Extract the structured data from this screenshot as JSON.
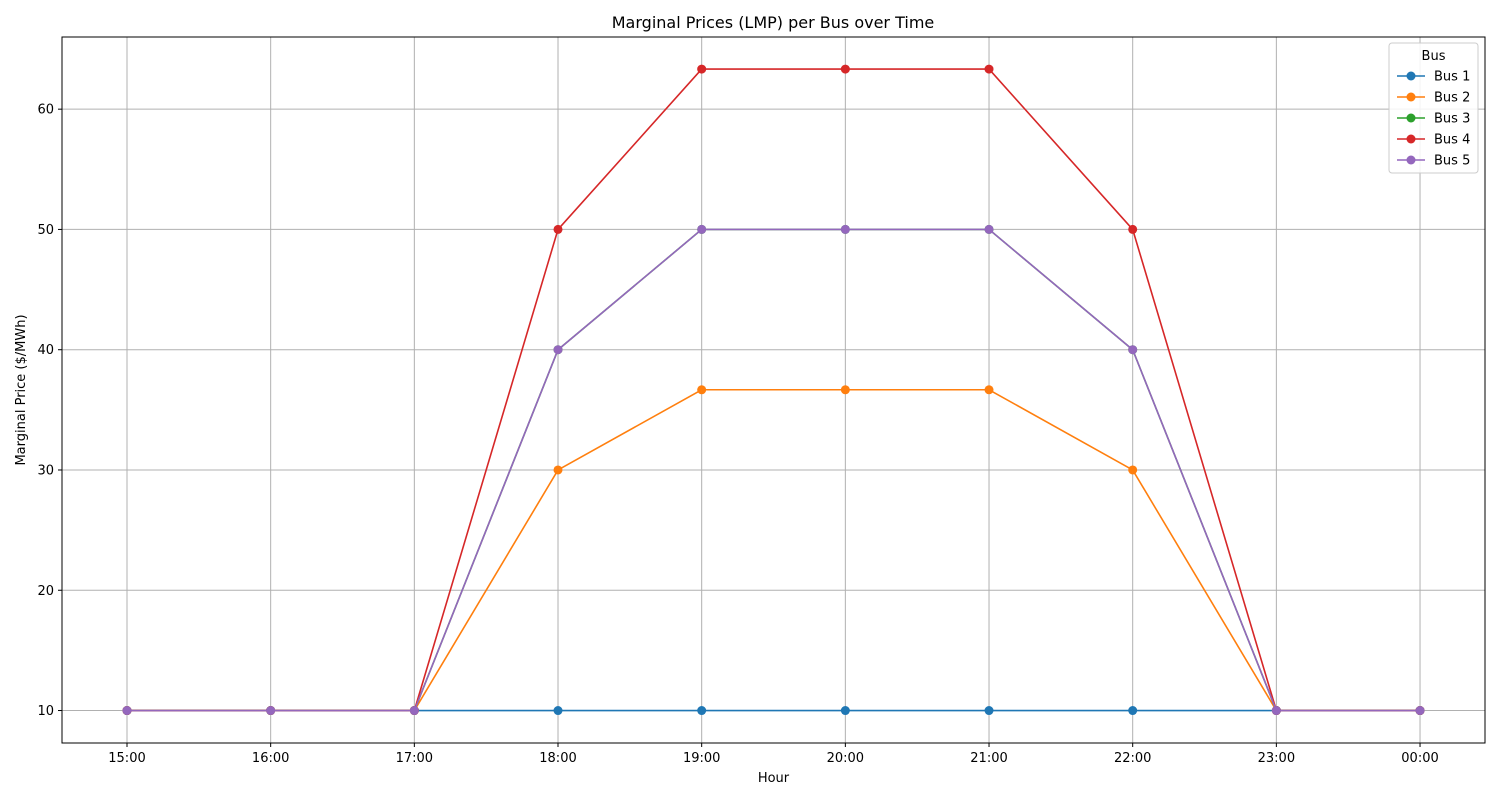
{
  "chart_data": {
    "type": "line",
    "title": "Marginal Prices (LMP) per Bus over Time",
    "xlabel": "Hour",
    "ylabel": "Marginal Price ($/MWh)",
    "categories": [
      "15:00",
      "16:00",
      "17:00",
      "18:00",
      "19:00",
      "20:00",
      "21:00",
      "22:00",
      "23:00",
      "00:00"
    ],
    "y_ticks": [
      10,
      20,
      30,
      40,
      50,
      60
    ],
    "ylim": [
      7.3,
      66
    ],
    "grid": true,
    "legend": {
      "title": "Bus",
      "placement": "top-right"
    },
    "series": [
      {
        "name": "Bus 1",
        "color": "#1f77b4",
        "values": [
          10,
          10,
          10,
          10,
          10,
          10,
          10,
          10,
          10,
          10
        ]
      },
      {
        "name": "Bus 2",
        "color": "#ff7f0e",
        "values": [
          10,
          10,
          10,
          30,
          36.67,
          36.67,
          36.67,
          30,
          10,
          10
        ]
      },
      {
        "name": "Bus 3",
        "color": "#2ca02c",
        "values": [
          10,
          10,
          10,
          40,
          50,
          50,
          50,
          40,
          10,
          10
        ]
      },
      {
        "name": "Bus 4",
        "color": "#d62728",
        "values": [
          10,
          10,
          10,
          50,
          63.33,
          63.33,
          63.33,
          50,
          10,
          10
        ]
      },
      {
        "name": "Bus 5",
        "color": "#9467bd",
        "values": [
          10,
          10,
          10,
          40,
          50,
          50,
          50,
          40,
          10,
          10
        ]
      }
    ]
  }
}
